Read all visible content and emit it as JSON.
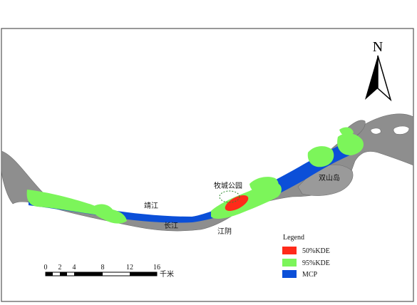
{
  "map": {
    "north_label": "N",
    "labels": {
      "jingjiang": "靖江",
      "changjiang": "长江",
      "jiangyin": "江阴",
      "muchenggongyuan": "牧城公园",
      "shuangshandao": "双山岛"
    }
  },
  "legend": {
    "title": "Legend",
    "items": [
      {
        "label": "50%KDE",
        "color": "#ff2a1a"
      },
      {
        "label": "95%KDE",
        "color": "#7cf55a"
      },
      {
        "label": "MCP",
        "color": "#0b4fd8"
      }
    ]
  },
  "scale_bar": {
    "ticks": [
      "0",
      "2",
      "4",
      "8",
      "12",
      "16"
    ],
    "unit": "千米"
  },
  "colors": {
    "land": "#ffffff",
    "river": "#8e8e8e",
    "mcp": "#0b4fd8",
    "kde95": "#7cf55a",
    "kde50": "#ff2a1a",
    "frame": "#555555"
  }
}
